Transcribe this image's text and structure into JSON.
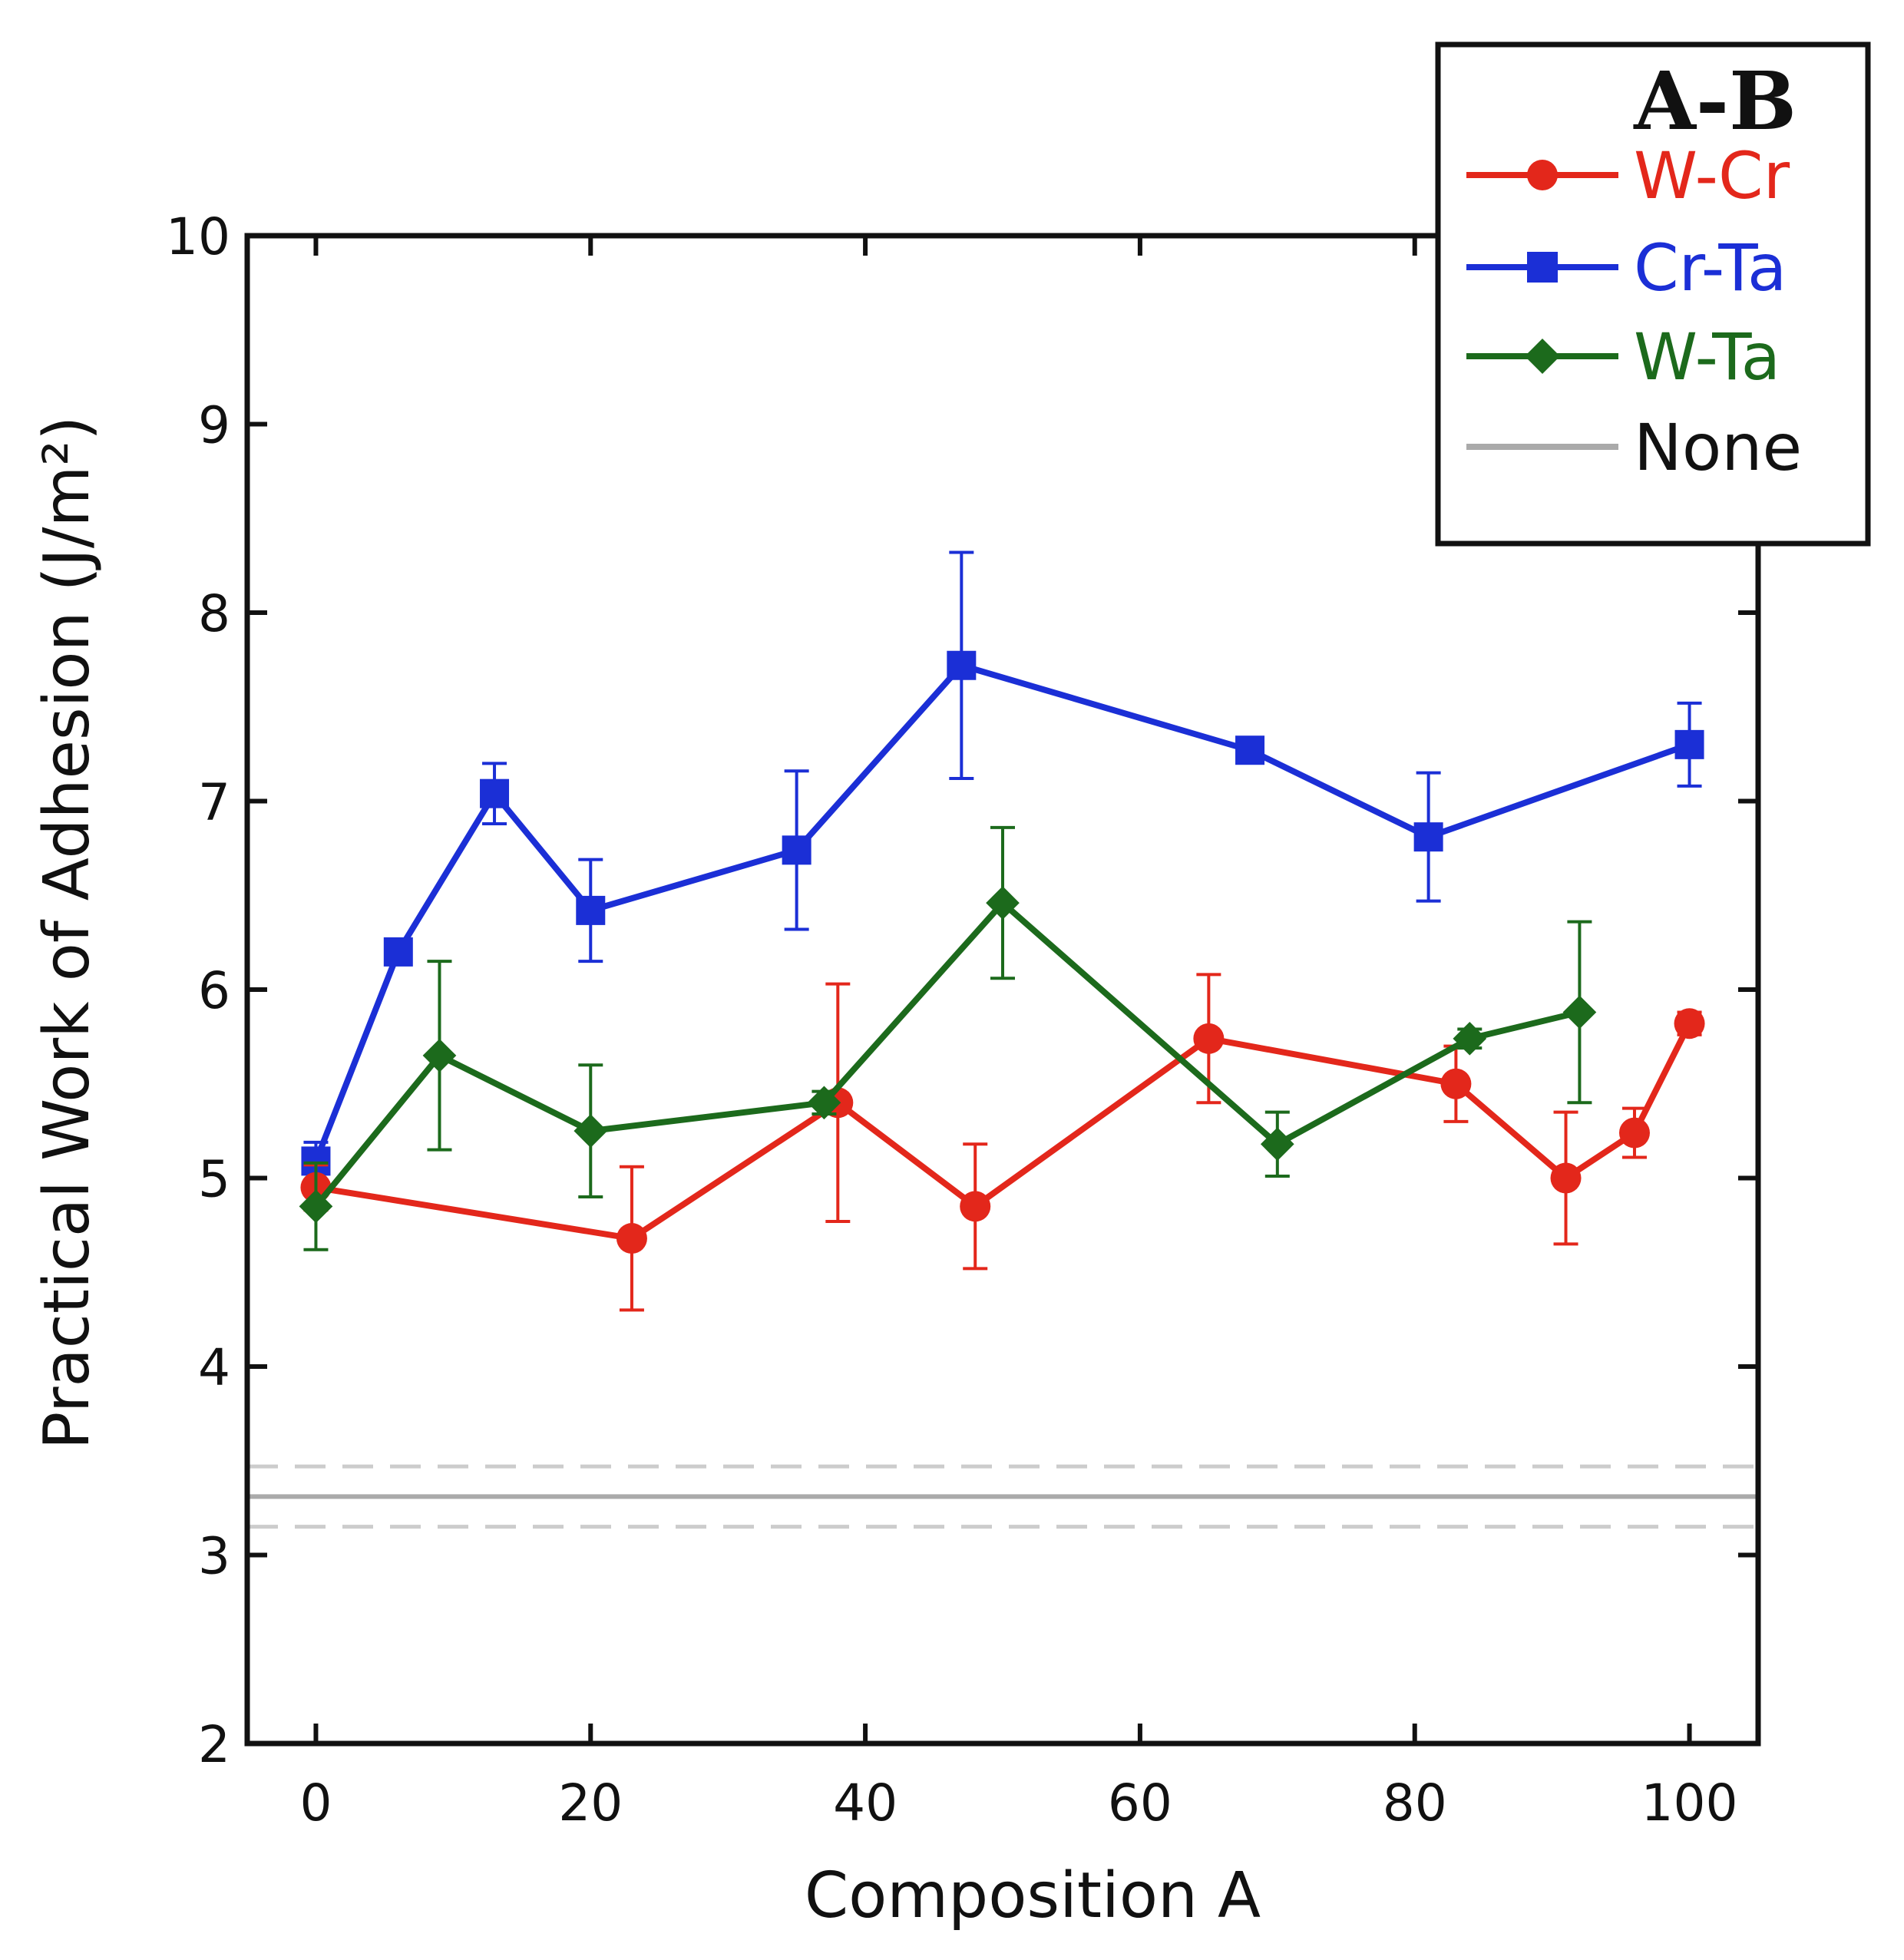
{
  "chart_data": {
    "type": "line",
    "title": "",
    "xlabel": "Composition A",
    "ylabel": "Practical Work of Adhesion (J/m²)",
    "xlim": [
      -5,
      105
    ],
    "ylim": [
      2,
      10
    ],
    "xticks": [
      0,
      20,
      40,
      60,
      80,
      100
    ],
    "yticks": [
      2,
      3,
      4,
      5,
      6,
      7,
      8,
      9,
      10
    ],
    "xtick_labels": [
      "0",
      "20",
      "40",
      "60",
      "80",
      "100"
    ],
    "ytick_labels": [
      "2",
      "3",
      "4",
      "5",
      "6",
      "7",
      "8",
      "9",
      "10"
    ],
    "legend_title": "A-B",
    "legend_position": "top-right",
    "series": [
      {
        "name": "W-Cr",
        "color": "#e3271b",
        "marker": "circle",
        "points": [
          {
            "x": 0,
            "y": 4.95,
            "err": 0.12
          },
          {
            "x": 23,
            "y": 4.68,
            "err": 0.38
          },
          {
            "x": 38,
            "y": 5.4,
            "err": 0.63
          },
          {
            "x": 48,
            "y": 4.85,
            "err": 0.33
          },
          {
            "x": 65,
            "y": 5.74,
            "err": 0.34
          },
          {
            "x": 83,
            "y": 5.5,
            "err": 0.2
          },
          {
            "x": 91,
            "y": 5.0,
            "err": 0.35
          },
          {
            "x": 96,
            "y": 5.24,
            "err": 0.13
          },
          {
            "x": 100,
            "y": 5.82,
            "err": 0.06
          }
        ]
      },
      {
        "name": "Cr-Ta",
        "color": "#1b2fd6",
        "marker": "square",
        "points": [
          {
            "x": 0,
            "y": 5.09,
            "err": 0.1
          },
          {
            "x": 6,
            "y": 6.2,
            "err": 0.04
          },
          {
            "x": 13,
            "y": 7.04,
            "err": 0.16
          },
          {
            "x": 20,
            "y": 6.42,
            "err": 0.27
          },
          {
            "x": 35,
            "y": 6.74,
            "err": 0.42
          },
          {
            "x": 47,
            "y": 7.72,
            "err": 0.6
          },
          {
            "x": 68,
            "y": 7.27,
            "err": 0.04
          },
          {
            "x": 81,
            "y": 6.81,
            "err": 0.34
          },
          {
            "x": 100,
            "y": 7.3,
            "err": 0.22
          }
        ]
      },
      {
        "name": "W-Ta",
        "color": "#1c6a1c",
        "marker": "diamond",
        "points": [
          {
            "x": 0,
            "y": 4.85,
            "err": 0.23
          },
          {
            "x": 9,
            "y": 5.65,
            "err": 0.5
          },
          {
            "x": 20,
            "y": 5.25,
            "err": 0.35
          },
          {
            "x": 37,
            "y": 5.4,
            "err": 0.06
          },
          {
            "x": 50,
            "y": 6.46,
            "err": 0.4
          },
          {
            "x": 70,
            "y": 5.18,
            "err": 0.17
          },
          {
            "x": 84,
            "y": 5.74,
            "err": 0.05
          },
          {
            "x": 92,
            "y": 5.88,
            "err": 0.48
          }
        ]
      },
      {
        "name": "None",
        "color": "#aaaaaa",
        "marker": "none",
        "baseline": 3.31,
        "band": [
          3.15,
          3.47
        ]
      }
    ]
  }
}
